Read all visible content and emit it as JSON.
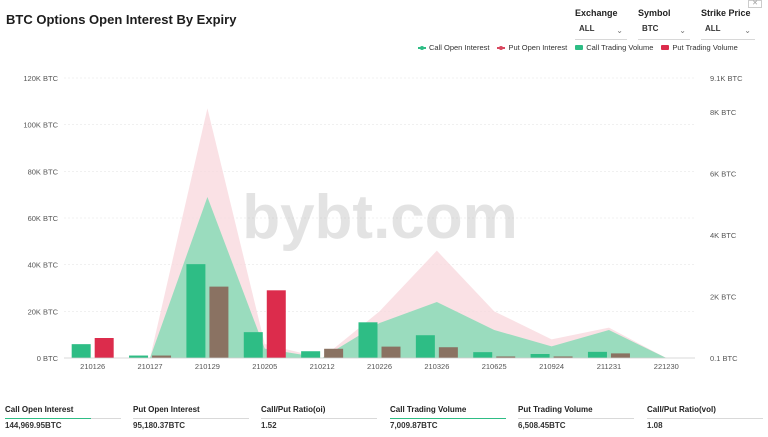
{
  "header": {
    "title": "BTC Options Open Interest By Expiry"
  },
  "filters": [
    {
      "label": "Exchange",
      "value": "ALL"
    },
    {
      "label": "Symbol",
      "value": "BTC"
    },
    {
      "label": "Strike Price",
      "value": "ALL"
    }
  ],
  "legend": [
    {
      "label": "Call Open Interest",
      "color": "#2ebd85",
      "style": "line"
    },
    {
      "label": "Put  Open Interest",
      "color": "#d9485f",
      "style": "line"
    },
    {
      "label": "Call Trading Volume",
      "color": "#2ebd85",
      "style": "bar"
    },
    {
      "label": "Put  Trading Volume",
      "color": "#dc2c4c",
      "style": "bar"
    }
  ],
  "watermark": "bybt.com",
  "stats": [
    {
      "label": "Call Open Interest",
      "value": "144,969.95BTC"
    },
    {
      "label": "Put Open Interest",
      "value": "95,180.37BTC"
    },
    {
      "label": "Call/Put Ratio(oi)",
      "value": "1.52"
    },
    {
      "label": "Call Trading Volume",
      "value": "7,009.87BTC"
    },
    {
      "label": "Put Trading Volume",
      "value": "6,508.45BTC"
    },
    {
      "label": "Call/Put Ratio(vol)",
      "value": "1.08"
    }
  ],
  "chart_data": {
    "type": "bar",
    "categories": [
      "210126",
      "210127",
      "210129",
      "210205",
      "210212",
      "210226",
      "210326",
      "210625",
      "210924",
      "211231",
      "221230"
    ],
    "y_left": {
      "ticks": [
        "0 BTC",
        "20K BTC",
        "40K BTC",
        "60K BTC",
        "80K BTC",
        "100K BTC",
        "120K BTC"
      ],
      "tick_values": [
        0,
        20000,
        40000,
        60000,
        80000,
        100000,
        120000
      ],
      "range": [
        0,
        120000
      ]
    },
    "y_right": {
      "ticks": [
        "0.1 BTC",
        "2K BTC",
        "4K BTC",
        "6K BTC",
        "8K BTC",
        "9.1K BTC"
      ],
      "tick_values": [
        0.1,
        2000,
        4000,
        6000,
        8000,
        9100
      ],
      "range": [
        0,
        9100
      ]
    },
    "area_series": [
      {
        "name": "Put  Open Interest",
        "axis": "left",
        "color": "#f8d7dc",
        "values": [
          0,
          0,
          107000,
          6000,
          0,
          20000,
          46000,
          20000,
          8000,
          13000,
          0
        ]
      },
      {
        "name": "Call Open Interest",
        "axis": "left",
        "color": "#8fdbb9",
        "values": [
          0,
          0,
          69000,
          4000,
          0,
          15000,
          24000,
          12000,
          5000,
          12000,
          0
        ]
      }
    ],
    "bar_series": [
      {
        "name": "Call Trading Volume",
        "axis": "right",
        "color": "#2ebd85",
        "values": [
          450,
          80,
          3050,
          840,
          220,
          1160,
          740,
          190,
          130,
          200,
          0
        ]
      },
      {
        "name": "Put  Trading Volume",
        "axis": "right",
        "highlight_color": "#dc2c4c",
        "color": "#8a7262",
        "highlight_indices": [
          0,
          3
        ],
        "values": [
          650,
          80,
          2320,
          2200,
          300,
          370,
          350,
          50,
          50,
          150,
          0
        ]
      }
    ],
    "grid": true,
    "legend_position": "top-right"
  }
}
